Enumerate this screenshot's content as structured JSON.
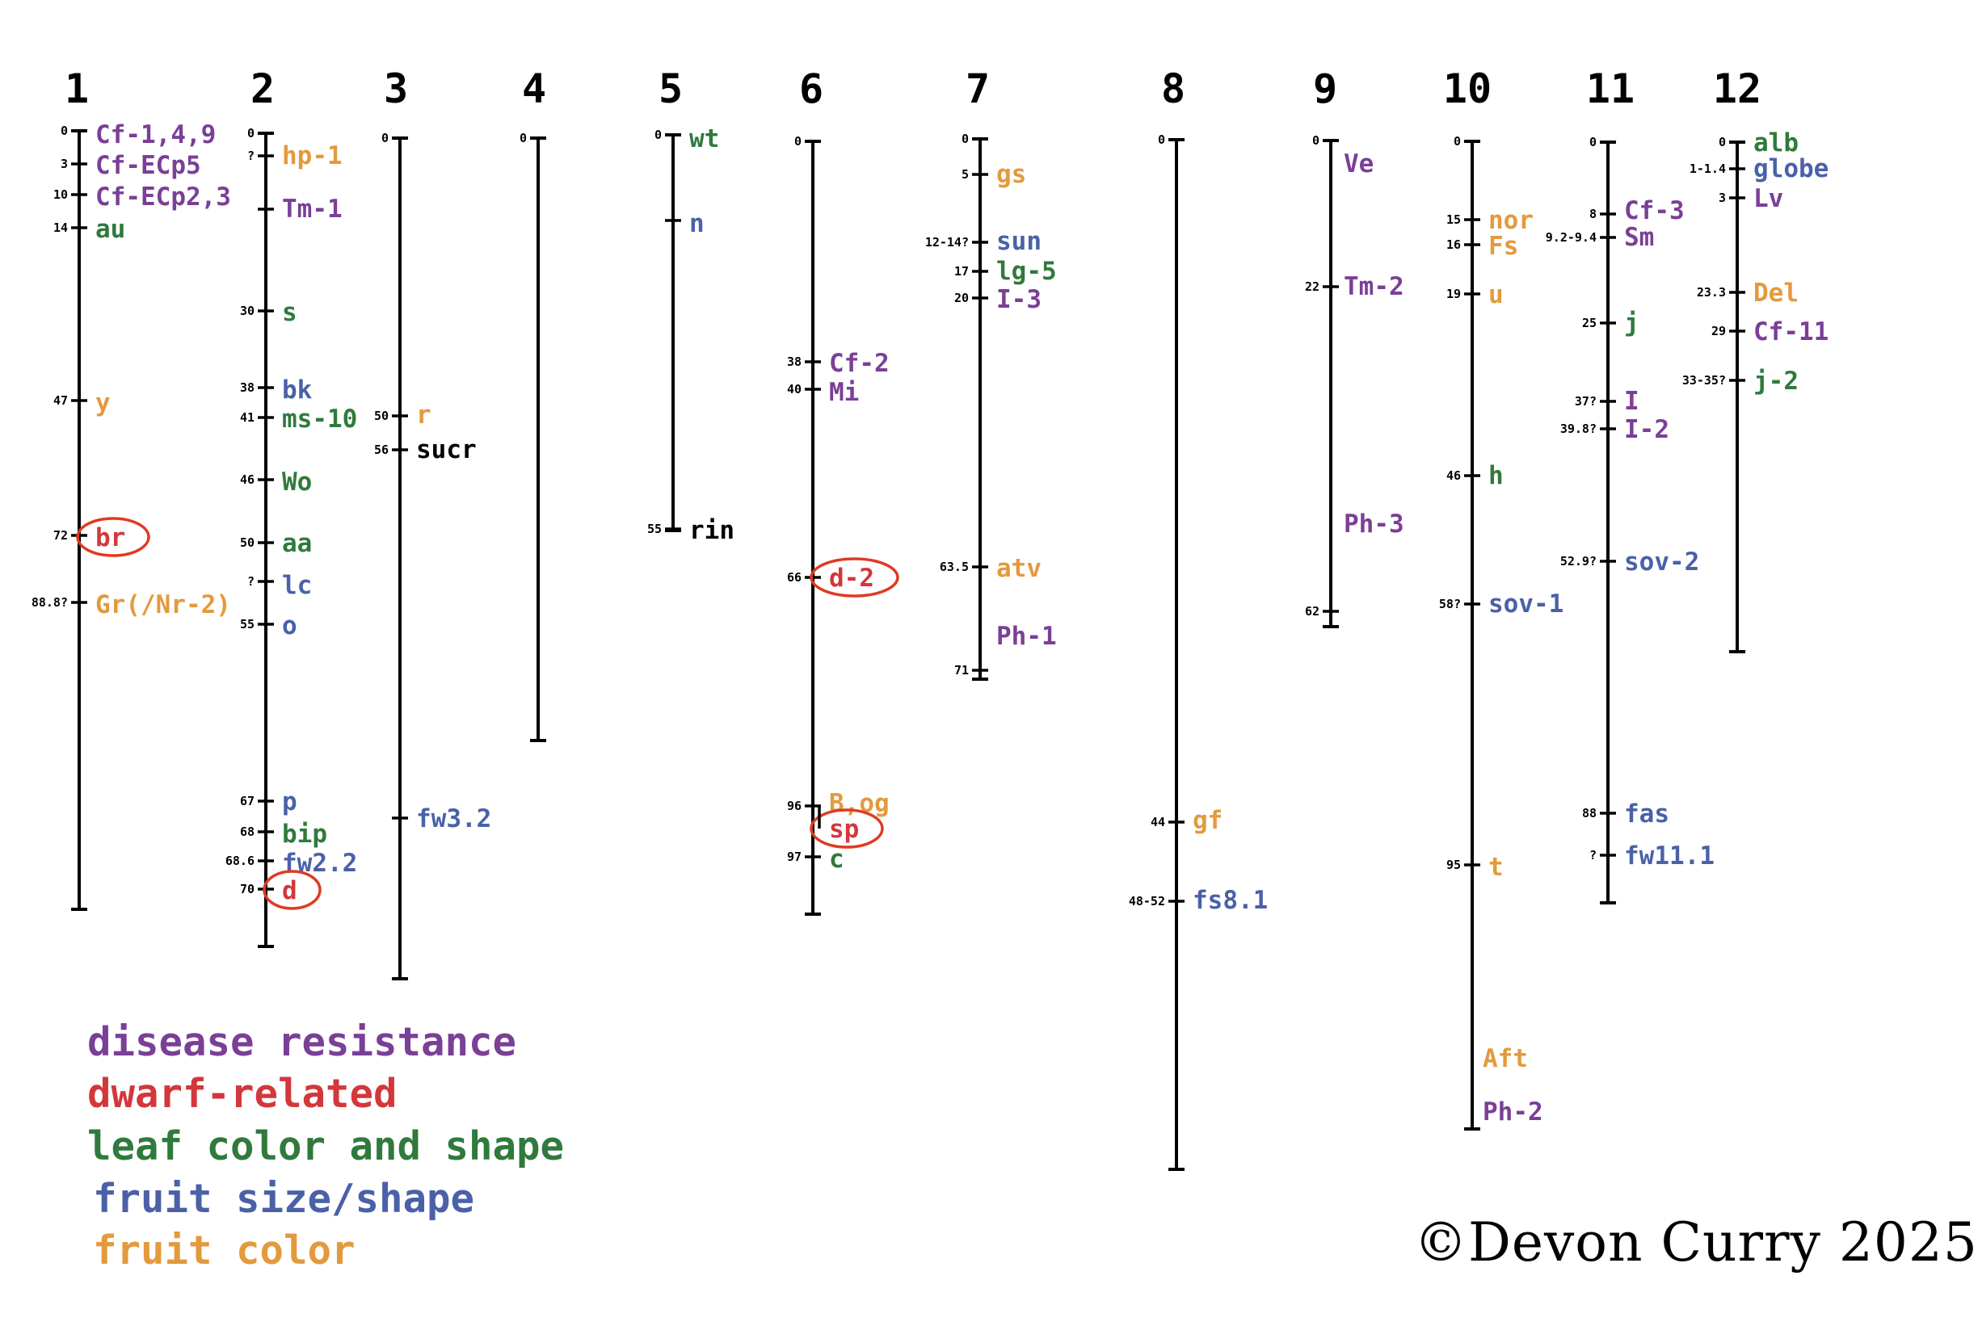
{
  "colors": {
    "disease": "#7a3f97",
    "dwarf": "#d3373b",
    "leaf": "#2f7a3c",
    "fruit_size": "#4a61a8",
    "fruit_color": "#e39a3d",
    "plain": "#000000",
    "circle": "#e03a22"
  },
  "legend": [
    {
      "label": "disease resistance",
      "category": "disease"
    },
    {
      "label": "dwarf-related",
      "category": "dwarf"
    },
    {
      "label": "leaf color and shape",
      "category": "leaf"
    },
    {
      "label": "fruit size/shape",
      "category": "fruit_size"
    },
    {
      "label": "fruit color",
      "category": "fruit_color"
    }
  ],
  "copyright": "©Devon Curry 2025",
  "chromosomes": [
    {
      "number": "1",
      "loci": [
        {
          "pos": "0",
          "name": "Cf-1,4,9",
          "category": "disease"
        },
        {
          "pos": "3",
          "name": "Cf-ECp5",
          "category": "disease"
        },
        {
          "pos": "10",
          "name": "Cf-ECp2,3",
          "category": "disease"
        },
        {
          "pos": "14",
          "name": "au",
          "category": "leaf"
        },
        {
          "pos": "47",
          "name": "y",
          "category": "fruit_color"
        },
        {
          "pos": "72",
          "name": "br",
          "category": "dwarf",
          "circled": true
        },
        {
          "pos": "88.8?",
          "name": "Gr(/Nr-2)",
          "category": "fruit_color"
        }
      ]
    },
    {
      "number": "2",
      "loci": [
        {
          "pos": "0",
          "name": "",
          "category": "plain"
        },
        {
          "pos": "?",
          "name": "hp-1",
          "category": "fruit_color"
        },
        {
          "pos": "",
          "name": "Tm-1",
          "category": "disease"
        },
        {
          "pos": "30",
          "name": "s",
          "category": "leaf"
        },
        {
          "pos": "38",
          "name": "bk",
          "category": "fruit_size"
        },
        {
          "pos": "41",
          "name": "ms-10",
          "category": "leaf"
        },
        {
          "pos": "46",
          "name": "Wo",
          "category": "leaf"
        },
        {
          "pos": "50",
          "name": "aa",
          "category": "leaf"
        },
        {
          "pos": "?",
          "name": "lc",
          "category": "fruit_size"
        },
        {
          "pos": "55",
          "name": "o",
          "category": "fruit_size"
        },
        {
          "pos": "67",
          "name": "p",
          "category": "fruit_size"
        },
        {
          "pos": "68",
          "name": "bip",
          "category": "leaf"
        },
        {
          "pos": "68.6",
          "name": "fw2.2",
          "category": "fruit_size"
        },
        {
          "pos": "70",
          "name": "d",
          "category": "dwarf",
          "circled": true
        }
      ]
    },
    {
      "number": "3",
      "loci": [
        {
          "pos": "0",
          "name": "",
          "category": "plain"
        },
        {
          "pos": "50",
          "name": "r",
          "category": "fruit_color"
        },
        {
          "pos": "56",
          "name": "sucr",
          "category": "plain"
        },
        {
          "pos": "",
          "name": "fw3.2",
          "category": "fruit_size"
        }
      ]
    },
    {
      "number": "4",
      "loci": [
        {
          "pos": "0",
          "name": "",
          "category": "plain"
        }
      ]
    },
    {
      "number": "5",
      "loci": [
        {
          "pos": "0",
          "name": "wt",
          "category": "leaf"
        },
        {
          "pos": "",
          "name": "n",
          "category": "fruit_size"
        },
        {
          "pos": "55",
          "name": "rin",
          "category": "plain"
        }
      ]
    },
    {
      "number": "6",
      "loci": [
        {
          "pos": "0",
          "name": "",
          "category": "plain"
        },
        {
          "pos": "38",
          "name": "Cf-2",
          "category": "disease"
        },
        {
          "pos": "40",
          "name": "Mi",
          "category": "disease"
        },
        {
          "pos": "66",
          "name": "d-2",
          "category": "dwarf",
          "circled": true
        },
        {
          "pos": "96",
          "name": "B,og",
          "category": "fruit_color"
        },
        {
          "pos": "",
          "name": "sp",
          "category": "dwarf",
          "circled": true
        },
        {
          "pos": "97",
          "name": "c",
          "category": "leaf"
        }
      ]
    },
    {
      "number": "7",
      "loci": [
        {
          "pos": "0",
          "name": "",
          "category": "plain"
        },
        {
          "pos": "5",
          "name": "gs",
          "category": "fruit_color"
        },
        {
          "pos": "12-14?",
          "name": "sun",
          "category": "fruit_size"
        },
        {
          "pos": "17",
          "name": "lg-5",
          "category": "leaf"
        },
        {
          "pos": "20",
          "name": "I-3",
          "category": "disease"
        },
        {
          "pos": "63.5",
          "name": "atv",
          "category": "fruit_color"
        },
        {
          "pos": "",
          "name": "Ph-1",
          "category": "disease"
        },
        {
          "pos": "71",
          "name": "",
          "category": "plain"
        }
      ]
    },
    {
      "number": "8",
      "loci": [
        {
          "pos": "0",
          "name": "",
          "category": "plain"
        },
        {
          "pos": "44",
          "name": "gf",
          "category": "fruit_color"
        },
        {
          "pos": "48-52",
          "name": "fs8.1",
          "category": "fruit_size"
        }
      ]
    },
    {
      "number": "9",
      "loci": [
        {
          "pos": "0",
          "name": "Ve",
          "category": "disease"
        },
        {
          "pos": "22",
          "name": "Tm-2",
          "category": "disease"
        },
        {
          "pos": "",
          "name": "Ph-3",
          "category": "disease"
        },
        {
          "pos": "62",
          "name": "",
          "category": "plain"
        }
      ]
    },
    {
      "number": "10",
      "loci": [
        {
          "pos": "0",
          "name": "",
          "category": "plain"
        },
        {
          "pos": "15",
          "name": "nor",
          "category": "fruit_color"
        },
        {
          "pos": "16",
          "name": "Fs",
          "category": "fruit_color"
        },
        {
          "pos": "19",
          "name": "u",
          "category": "fruit_color"
        },
        {
          "pos": "46",
          "name": "h",
          "category": "leaf"
        },
        {
          "pos": "58?",
          "name": "sov-1",
          "category": "fruit_size"
        },
        {
          "pos": "95",
          "name": "t",
          "category": "fruit_color"
        },
        {
          "pos": "",
          "name": "Aft",
          "category": "fruit_color"
        },
        {
          "pos": "",
          "name": "Ph-2",
          "category": "disease"
        }
      ]
    },
    {
      "number": "11",
      "loci": [
        {
          "pos": "0",
          "name": "",
          "category": "plain"
        },
        {
          "pos": "8",
          "name": "Cf-3",
          "category": "disease"
        },
        {
          "pos": "9.2-9.4",
          "name": "Sm",
          "category": "disease"
        },
        {
          "pos": "25",
          "name": "j",
          "category": "leaf"
        },
        {
          "pos": "37?",
          "name": "I",
          "category": "disease"
        },
        {
          "pos": "39.8?",
          "name": "I-2",
          "category": "disease"
        },
        {
          "pos": "52.9?",
          "name": "sov-2",
          "category": "fruit_size"
        },
        {
          "pos": "88",
          "name": "fas",
          "category": "fruit_size"
        },
        {
          "pos": "?",
          "name": "fw11.1",
          "category": "fruit_size"
        }
      ]
    },
    {
      "number": "12",
      "loci": [
        {
          "pos": "0",
          "name": "alb",
          "category": "leaf"
        },
        {
          "pos": "1-1.4",
          "name": "globe",
          "category": "fruit_size"
        },
        {
          "pos": "3",
          "name": "Lv",
          "category": "disease"
        },
        {
          "pos": "23.3",
          "name": "Del",
          "category": "fruit_color"
        },
        {
          "pos": "29",
          "name": "Cf-11",
          "category": "disease"
        },
        {
          "pos": "33-35?",
          "name": "j-2",
          "category": "leaf"
        }
      ]
    }
  ]
}
